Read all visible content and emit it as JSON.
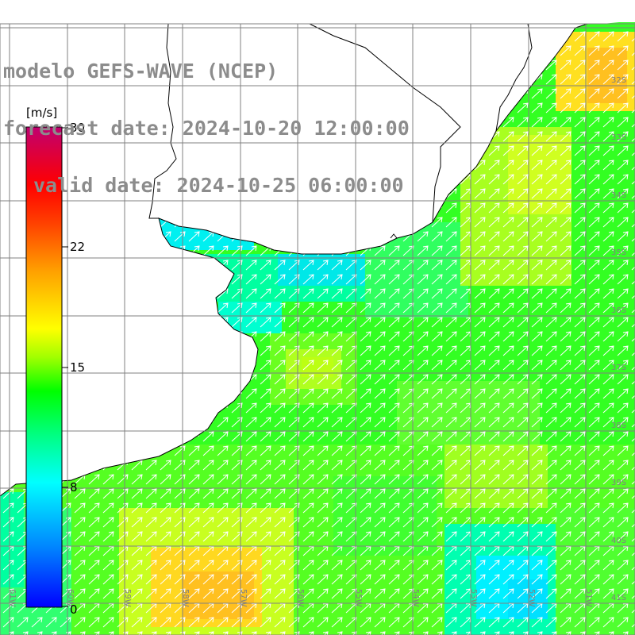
{
  "title": {
    "line1": "modelo GEFS-WAVE (NCEP)",
    "line2": "forecast date: 2024-10-20 12:00:00",
    "line3": "valid date: 2024-10-25 06:00:00"
  },
  "colorbar": {
    "unit": "[m/s]",
    "ticks": [
      "30",
      "22",
      "15",
      "8",
      "0"
    ],
    "tick_values": [
      30,
      22,
      15,
      8,
      0
    ],
    "range": [
      0,
      30
    ],
    "colors": [
      "#0000ff",
      "#0080ff",
      "#00ffff",
      "#00ff80",
      "#00ff00",
      "#80ff00",
      "#ffff00",
      "#ffa500",
      "#ff4000",
      "#ff0000",
      "#c00060"
    ]
  },
  "grid": {
    "lat_labels": [
      "32S",
      "33S",
      "34S",
      "35S",
      "36S",
      "37S",
      "38S",
      "39S",
      "40S",
      "41S"
    ],
    "lon_labels": [
      "61W",
      "60W",
      "59W",
      "58W",
      "57W",
      "56W",
      "55W",
      "54W",
      "53W",
      "52W",
      "51W"
    ]
  },
  "colors": {
    "land": "#ffffff",
    "grid_line": "#808080",
    "coastline": "#000000",
    "title_text": "#8c8c8c",
    "arrow": "#ffffff"
  },
  "map": {
    "variable": "wind speed",
    "arrows": "wind direction (toward northeast)",
    "dominant_speed_range_ms": [
      8,
      17
    ]
  }
}
